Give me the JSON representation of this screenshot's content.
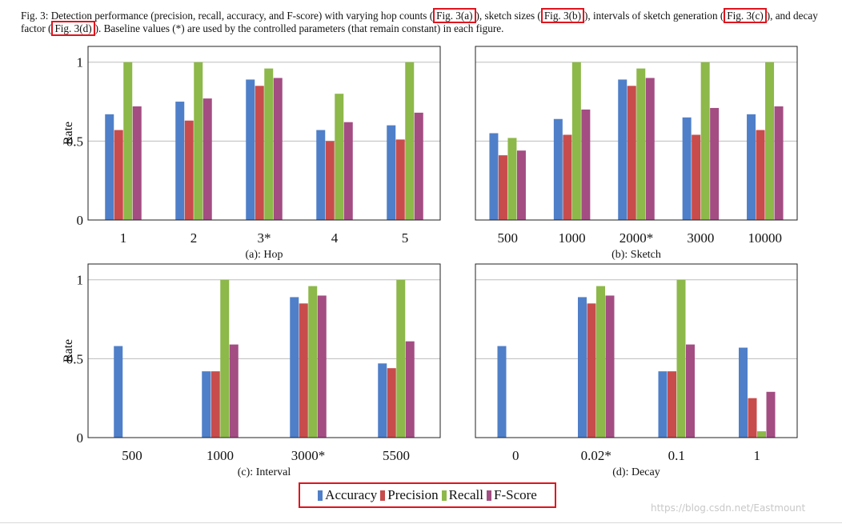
{
  "caption": {
    "seg1": "Fig. 3: Detection performance (precision, recall, accuracy, and F-score) with varying hop counts (",
    "ref_a": "Fig. 3(a)",
    "seg2": "), sketch sizes (",
    "ref_b": "Fig. 3(b)",
    "seg3": "), intervals of sketch generation (",
    "ref_c": "Fig. 3(c)",
    "seg4": "), and decay factor (",
    "ref_d": "Fig. 3(d)",
    "seg5": "). Baseline values (*) are used by the controlled parameters (that remain constant) in each figure."
  },
  "series_colors": {
    "Accuracy": "#4f7fc8",
    "Precision": "#c84c4c",
    "Recall": "#8db84a",
    "F-Score": "#a34d83"
  },
  "legend": {
    "items": [
      "Accuracy",
      "Precision",
      "Recall",
      "F-Score"
    ]
  },
  "watermark": "https://blog.csdn.net/Eastmount",
  "chart_data": [
    {
      "type": "bar",
      "subcaption": "(a): Hop",
      "ylabel": "Rate",
      "ylim": [
        0,
        1.1
      ],
      "yticks": [
        "0",
        "0.5",
        "1"
      ],
      "categories": [
        "1",
        "2",
        "3*",
        "4",
        "5"
      ],
      "grid": true,
      "series": [
        {
          "name": "Accuracy",
          "values": [
            0.67,
            0.75,
            0.89,
            0.57,
            0.6
          ]
        },
        {
          "name": "Precision",
          "values": [
            0.57,
            0.63,
            0.85,
            0.5,
            0.51
          ]
        },
        {
          "name": "Recall",
          "values": [
            1.0,
            1.0,
            0.96,
            0.8,
            1.0
          ]
        },
        {
          "name": "F-Score",
          "values": [
            0.72,
            0.77,
            0.9,
            0.62,
            0.68
          ]
        }
      ]
    },
    {
      "type": "bar",
      "subcaption": "(b): Sketch",
      "ylabel": "",
      "ylim": [
        0,
        1.1
      ],
      "yticks": [],
      "categories": [
        "500",
        "1000",
        "2000*",
        "3000",
        "10000"
      ],
      "grid": true,
      "series": [
        {
          "name": "Accuracy",
          "values": [
            0.55,
            0.64,
            0.89,
            0.65,
            0.67
          ]
        },
        {
          "name": "Precision",
          "values": [
            0.41,
            0.54,
            0.85,
            0.54,
            0.57
          ]
        },
        {
          "name": "Recall",
          "values": [
            0.52,
            1.0,
            0.96,
            1.0,
            1.0
          ]
        },
        {
          "name": "F-Score",
          "values": [
            0.44,
            0.7,
            0.9,
            0.71,
            0.72
          ]
        }
      ]
    },
    {
      "type": "bar",
      "subcaption": "(c): Interval",
      "ylabel": "Rate",
      "ylim": [
        0,
        1.1
      ],
      "yticks": [
        "0",
        "0.5",
        "1"
      ],
      "categories": [
        "500",
        "1000",
        "3000*",
        "5500"
      ],
      "grid": true,
      "series": [
        {
          "name": "Accuracy",
          "values": [
            0.58,
            0.42,
            0.89,
            0.47
          ]
        },
        {
          "name": "Precision",
          "values": [
            0.0,
            0.42,
            0.85,
            0.44
          ]
        },
        {
          "name": "Recall",
          "values": [
            0.0,
            1.0,
            0.96,
            1.0
          ]
        },
        {
          "name": "F-Score",
          "values": [
            0.0,
            0.59,
            0.9,
            0.61
          ]
        }
      ]
    },
    {
      "type": "bar",
      "subcaption": "(d): Decay",
      "ylabel": "",
      "ylim": [
        0,
        1.1
      ],
      "yticks": [],
      "categories": [
        "0",
        "0.02*",
        "0.1",
        "1"
      ],
      "grid": true,
      "series": [
        {
          "name": "Accuracy",
          "values": [
            0.58,
            0.89,
            0.42,
            0.57
          ]
        },
        {
          "name": "Precision",
          "values": [
            0.0,
            0.85,
            0.42,
            0.25
          ]
        },
        {
          "name": "Recall",
          "values": [
            0.0,
            0.96,
            1.0,
            0.04
          ]
        },
        {
          "name": "F-Score",
          "values": [
            0.0,
            0.9,
            0.59,
            0.29
          ]
        }
      ]
    }
  ]
}
